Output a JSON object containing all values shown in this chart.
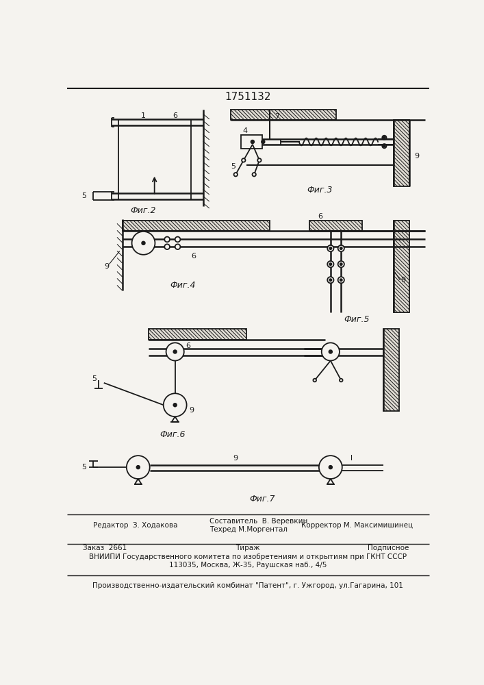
{
  "patent_number": "1751132",
  "bg_color": "#f5f3ef",
  "line_color": "#1a1a1a",
  "text_color": "#1a1a1a",
  "fig2_label": "Фиг.2",
  "fig3_label": "Фиг.3",
  "fig4_label": "Фиг.4",
  "fig5_label": "Фиг.5",
  "fig6_label": "Фиг.6",
  "fig7_label": "Фиг.7"
}
